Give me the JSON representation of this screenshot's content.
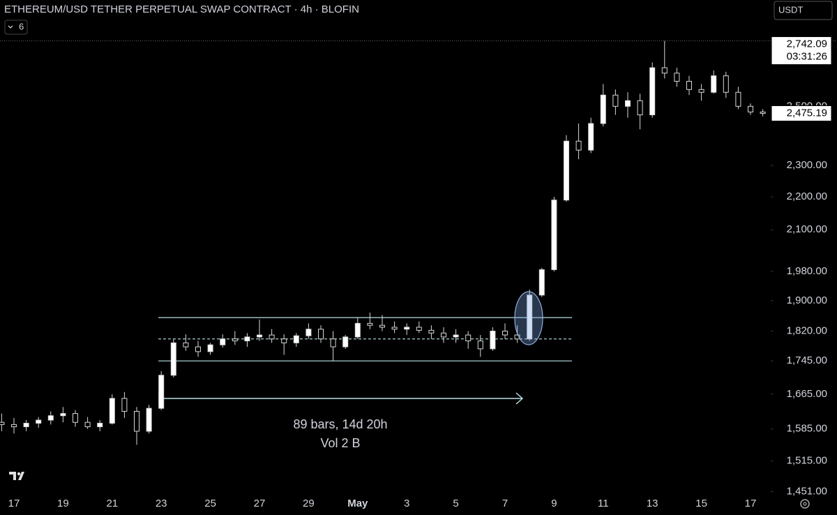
{
  "chart_data": {
    "type": "candlestick",
    "title": "ETHEREUM/USD TETHER PERPETUAL SWAP CONTRACT · 4h · BLOFIN",
    "indicator_count": "6",
    "currency": "USDT",
    "log_scale": true,
    "ylim": [
      1443,
      2905
    ],
    "yticks": [
      {
        "value": 2500,
        "label": "2,500.00"
      },
      {
        "value": 2300,
        "label": "2,300.00"
      },
      {
        "value": 2200,
        "label": "2,200.00"
      },
      {
        "value": 2100,
        "label": "2,100.00"
      },
      {
        "value": 1980,
        "label": "1,980.00"
      },
      {
        "value": 1900,
        "label": "1,900.00"
      },
      {
        "value": 1820,
        "label": "1,820.00"
      },
      {
        "value": 1745,
        "label": "1,745.00"
      },
      {
        "value": 1665,
        "label": "1,665.00"
      },
      {
        "value": 1585,
        "label": "1,585.00"
      },
      {
        "value": 1515,
        "label": "1,515.00"
      },
      {
        "value": 1451,
        "label": "1,451.00"
      }
    ],
    "categories": [
      null,
      "17",
      null,
      null,
      null,
      "19",
      null,
      null,
      null,
      "21",
      null,
      null,
      null,
      "23",
      null,
      null,
      null,
      "25",
      null,
      null,
      null,
      "27",
      null,
      null,
      null,
      "29",
      null,
      null,
      null,
      "May",
      null,
      null,
      null,
      "3",
      null,
      null,
      null,
      "5",
      null,
      null,
      null,
      "7",
      null,
      null,
      null,
      "9",
      null,
      null,
      null,
      "11",
      null,
      null,
      null,
      "13",
      null,
      null,
      null,
      "15",
      null,
      null,
      null,
      "17",
      null
    ],
    "open": [
      1600,
      1595,
      1590,
      1598,
      1605,
      1615,
      1620,
      1600,
      1590,
      1598,
      1655,
      1625,
      1580,
      1632,
      1710,
      1790,
      1780,
      1768,
      1785,
      1800,
      1795,
      1805,
      1810,
      1800,
      1790,
      1808,
      1825,
      1800,
      1780,
      1805,
      1840,
      1835,
      1830,
      1825,
      1830,
      1822,
      1815,
      1805,
      1810,
      1795,
      1775,
      1820,
      1810,
      1800,
      1915,
      1985,
      2190,
      2380,
      2350,
      2440,
      2540,
      2500,
      2520,
      2470,
      2640,
      2620,
      2590,
      2560,
      2550,
      2610,
      2550,
      2500,
      2480
    ],
    "high": [
      1620,
      1610,
      1605,
      1612,
      1625,
      1635,
      1628,
      1612,
      1605,
      1665,
      1670,
      1635,
      1640,
      1720,
      1800,
      1812,
      1795,
      1790,
      1812,
      1820,
      1815,
      1850,
      1825,
      1812,
      1815,
      1840,
      1835,
      1820,
      1810,
      1855,
      1868,
      1862,
      1845,
      1840,
      1845,
      1835,
      1830,
      1825,
      1820,
      1810,
      1830,
      1840,
      1835,
      1930,
      1990,
      2200,
      2400,
      2440,
      2460,
      2580,
      2560,
      2550,
      2545,
      2660,
      2742.09,
      2640,
      2610,
      2580,
      2630,
      2625,
      2570,
      2510,
      2490
    ],
    "low": [
      1580,
      1575,
      1580,
      1588,
      1595,
      1600,
      1590,
      1585,
      1580,
      1595,
      1610,
      1550,
      1575,
      1628,
      1705,
      1770,
      1755,
      1760,
      1778,
      1785,
      1780,
      1795,
      1790,
      1760,
      1780,
      1800,
      1790,
      1745,
      1775,
      1800,
      1825,
      1820,
      1815,
      1810,
      1815,
      1800,
      1790,
      1790,
      1775,
      1755,
      1770,
      1800,
      1790,
      1795,
      1910,
      1980,
      2185,
      2320,
      2340,
      2430,
      2470,
      2460,
      2420,
      2460,
      2600,
      2570,
      2540,
      2520,
      2545,
      2530,
      2490,
      2470,
      2465
    ],
    "close": [
      1595,
      1590,
      1598,
      1605,
      1615,
      1620,
      1600,
      1590,
      1598,
      1655,
      1625,
      1580,
      1632,
      1710,
      1790,
      1780,
      1768,
      1785,
      1800,
      1795,
      1805,
      1810,
      1800,
      1790,
      1808,
      1825,
      1800,
      1780,
      1805,
      1840,
      1835,
      1830,
      1825,
      1830,
      1822,
      1815,
      1805,
      1810,
      1795,
      1775,
      1820,
      1810,
      1800,
      1915,
      1985,
      2190,
      2380,
      2350,
      2440,
      2540,
      2500,
      2520,
      2470,
      2640,
      2620,
      2590,
      2560,
      2550,
      2610,
      2550,
      2500,
      2480,
      2475.19
    ],
    "range": {
      "high": 1855,
      "mid": 1800,
      "low": 1745
    },
    "measure_label": [
      "89 bars, 14d 20h",
      "Vol 2 B"
    ],
    "high_price": {
      "value": 2742.09,
      "label": "2,742.09"
    },
    "countdown": "03:31:26",
    "last_price": {
      "value": 2475.19,
      "label": "2,475.19"
    },
    "up_color": "#ffffff",
    "down_color": "#000000",
    "range_color": "#b8e0e6"
  }
}
